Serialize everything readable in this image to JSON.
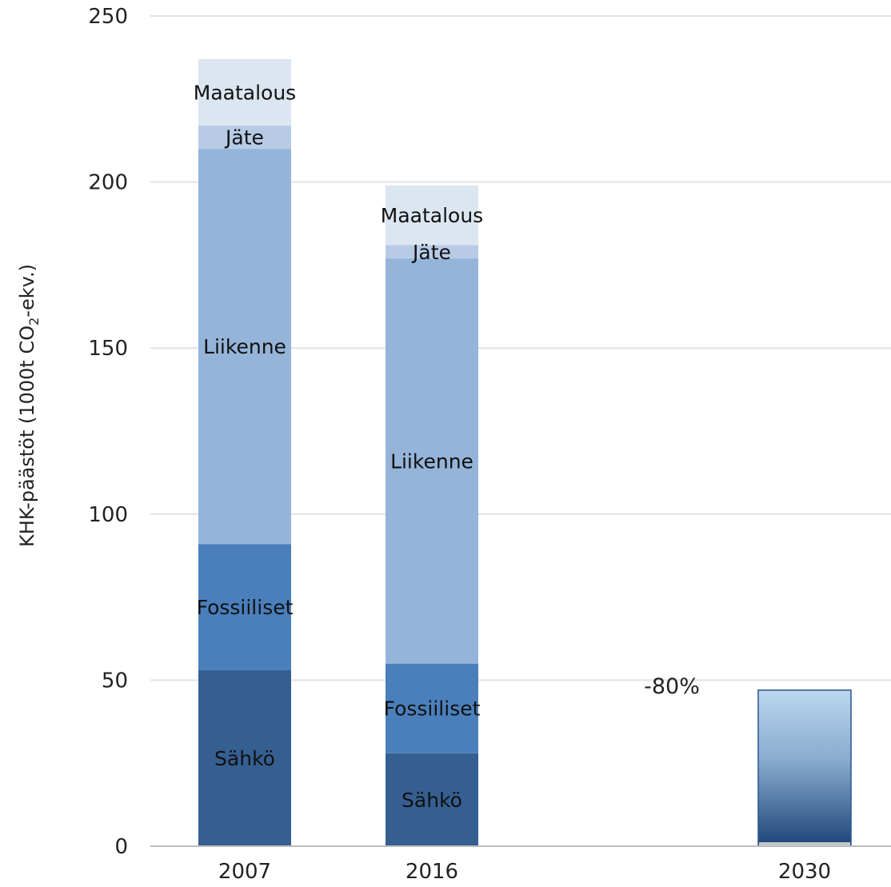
{
  "chart_data": {
    "type": "bar",
    "stacked": true,
    "categories": [
      "2007",
      "2016",
      "2030"
    ],
    "ylabel_main": "KHK-päästöt (1000t CO",
    "ylabel_sub": "2",
    "ylabel_tail": "-ekv.)",
    "ylim": [
      0,
      250
    ],
    "yticks": [
      "0",
      "50",
      "100",
      "150",
      "200",
      "250"
    ],
    "grid": true,
    "series": [
      {
        "name": "Sähkö",
        "color": "#355f91",
        "values": [
          53,
          28,
          null
        ]
      },
      {
        "name": "Fossiiliset",
        "color": "#4a7fbc",
        "values": [
          38,
          27,
          null
        ]
      },
      {
        "name": "Liikenne",
        "color": "#95b4d9",
        "values": [
          119,
          122,
          null
        ]
      },
      {
        "name": "Jäte",
        "color": "#b7cbe6",
        "values": [
          7,
          4,
          null
        ]
      },
      {
        "name": "Maatalous",
        "color": "#dce6f1",
        "values": [
          20,
          18,
          null
        ]
      }
    ],
    "target": {
      "category": "2030",
      "value": 47
    },
    "annotation": "-80%"
  }
}
